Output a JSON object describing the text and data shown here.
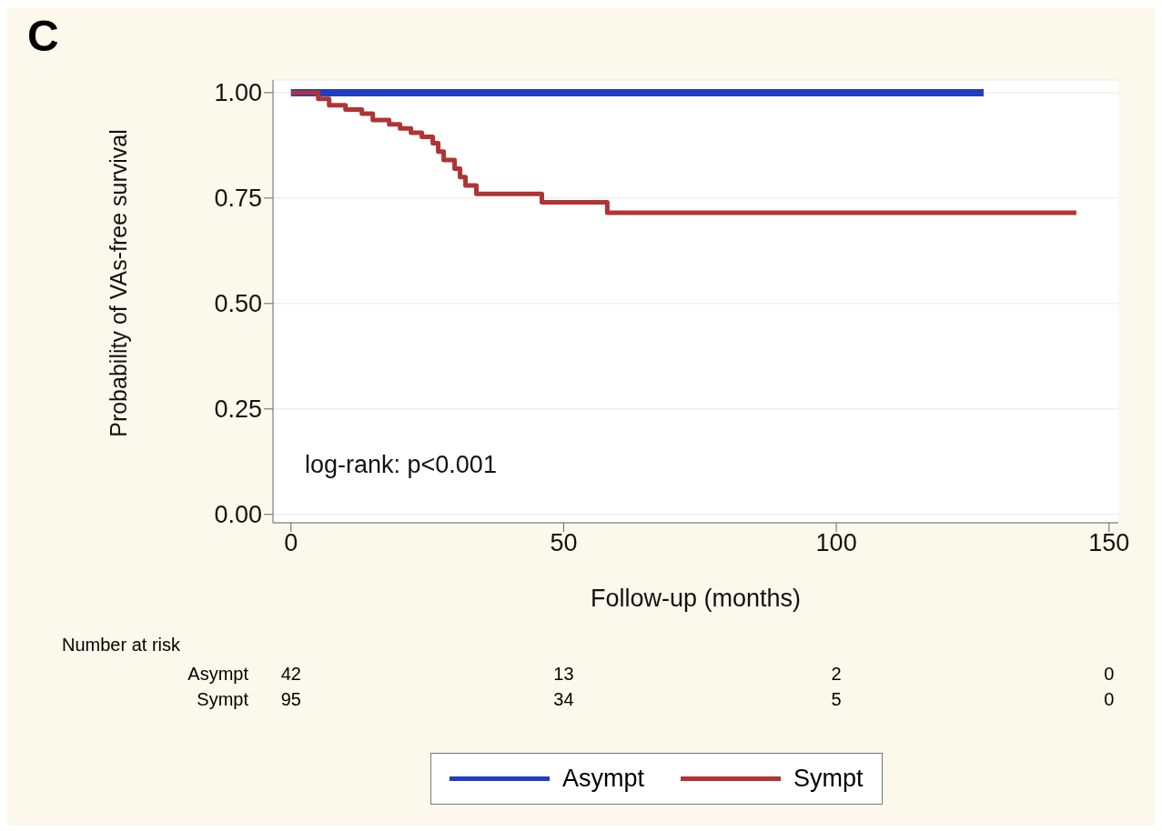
{
  "chart_data": {
    "type": "step",
    "title": "C",
    "xlabel": "Follow-up (months)",
    "ylabel": "Probability of VAs-free survival",
    "series": [
      {
        "name": "Asympt",
        "color": "#1f3fc0",
        "x": [
          0,
          127
        ],
        "values": [
          1.0,
          1.0
        ]
      },
      {
        "name": "Sympt",
        "color": "#b03434",
        "x": [
          0,
          5,
          7,
          10,
          13,
          15,
          18,
          20,
          22,
          24,
          26,
          27,
          28,
          30,
          31,
          32,
          34,
          46,
          58,
          144
        ],
        "values": [
          1.0,
          0.985,
          0.97,
          0.96,
          0.95,
          0.935,
          0.925,
          0.915,
          0.905,
          0.895,
          0.88,
          0.86,
          0.84,
          0.82,
          0.8,
          0.78,
          0.76,
          0.74,
          0.715,
          0.715
        ]
      }
    ],
    "xlim": [
      -3.3,
      151.7
    ],
    "xticks": [
      0,
      50,
      100,
      150
    ],
    "ylim": [
      -0.02,
      1.03
    ],
    "yticks": [
      {
        "value": 0,
        "label": "0.00"
      },
      {
        "value": 0.25,
        "label": "0.25"
      },
      {
        "value": 0.5,
        "label": "0.50"
      },
      {
        "value": 0.75,
        "label": "0.75"
      },
      {
        "value": 1,
        "label": "1.00"
      }
    ],
    "grid": "y",
    "legend": "bottom",
    "marker": "none",
    "line_style": "solid",
    "annotations": [
      "log-rank: p<0.001",
      "Number at risk",
      "Asympt",
      "42",
      "13",
      "2",
      "0",
      "Sympt",
      "95",
      "34",
      "5",
      "0"
    ]
  }
}
